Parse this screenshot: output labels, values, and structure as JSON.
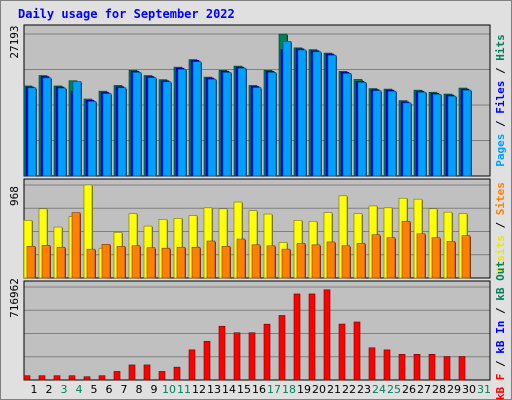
{
  "title": "Daily usage for September 2022",
  "chart_data": [
    {
      "panel": "top",
      "type": "bar",
      "ymax_label": "27193",
      "ymax": 27193,
      "legend": [
        {
          "text": "Pages",
          "color": "#00a0ff"
        },
        {
          "text": " / ",
          "color": "#000000"
        },
        {
          "text": "Files",
          "color": "#0000ff"
        },
        {
          "text": " / ",
          "color": "#000000"
        },
        {
          "text": "Hits",
          "color": "#00805c"
        }
      ],
      "categories": [
        "1",
        "2",
        "3",
        "4",
        "5",
        "6",
        "7",
        "8",
        "9",
        "10",
        "11",
        "12",
        "13",
        "14",
        "15",
        "16",
        "17",
        "18",
        "19",
        "20",
        "21",
        "22",
        "23",
        "24",
        "25",
        "26",
        "27",
        "28",
        "29",
        "30",
        "31"
      ],
      "series": [
        {
          "name": "Hits",
          "color": "#00805c",
          "values": [
            17250,
            19250,
            17250,
            18250,
            14750,
            16250,
            17350,
            20250,
            19250,
            18450,
            20850,
            22300,
            18950,
            20250,
            21050,
            17350,
            20250,
            27193,
            24550,
            24200,
            23550,
            20050,
            18500,
            16750,
            16650,
            14450,
            16450,
            16050,
            15700,
            16850,
            0
          ]
        },
        {
          "name": "Files",
          "color": "#0000ff",
          "values": [
            17050,
            19050,
            17050,
            16250,
            14500,
            16000,
            17100,
            20050,
            19050,
            18250,
            20650,
            22150,
            18750,
            20050,
            20850,
            17150,
            20050,
            24200,
            24350,
            24000,
            23350,
            19850,
            18150,
            16550,
            16450,
            14200,
            16250,
            15850,
            15500,
            16650,
            0
          ]
        },
        {
          "name": "Pages",
          "color": "#00a0ff",
          "values": [
            16900,
            18800,
            16850,
            18100,
            14300,
            15800,
            16900,
            19850,
            18850,
            18050,
            20450,
            21900,
            18550,
            19850,
            20650,
            16950,
            19850,
            25800,
            24150,
            23800,
            23150,
            19650,
            17950,
            16350,
            16250,
            14000,
            16050,
            15650,
            15300,
            16450,
            0
          ]
        }
      ]
    },
    {
      "panel": "middle",
      "type": "bar",
      "ymax_label": "968",
      "ymax": 968,
      "legend": [
        {
          "text": "Visits",
          "color": "#e8e800"
        },
        {
          "text": " / ",
          "color": "#000000"
        },
        {
          "text": "Sites",
          "color": "#ff8000"
        }
      ],
      "categories": [
        "1",
        "2",
        "3",
        "4",
        "5",
        "6",
        "7",
        "8",
        "9",
        "10",
        "11",
        "12",
        "13",
        "14",
        "15",
        "16",
        "17",
        "18",
        "19",
        "20",
        "21",
        "22",
        "23",
        "24",
        "25",
        "26",
        "27",
        "28",
        "29",
        "30",
        "31"
      ],
      "series": [
        {
          "name": "Visits",
          "color": "#ffff00",
          "values": [
            600,
            720,
            530,
            640,
            968,
            310,
            475,
            670,
            540,
            610,
            620,
            650,
            730,
            720,
            790,
            700,
            665,
            370,
            600,
            590,
            680,
            855,
            670,
            750,
            730,
            830,
            820,
            720,
            685,
            670,
            0
          ]
        },
        {
          "name": "Sites",
          "color": "#ff8000",
          "values": [
            330,
            340,
            320,
            680,
            300,
            350,
            330,
            335,
            315,
            310,
            320,
            320,
            385,
            330,
            405,
            345,
            335,
            300,
            360,
            345,
            375,
            335,
            360,
            450,
            420,
            590,
            460,
            420,
            380,
            440,
            0
          ]
        }
      ]
    },
    {
      "panel": "bottom",
      "type": "bar",
      "ymax_label": "716962",
      "ymax": 716962,
      "legend": [
        {
          "text": "kB F",
          "color": "#ff0000"
        },
        {
          "text": " / ",
          "color": "#000000"
        },
        {
          "text": "kB In",
          "color": "#0000ff"
        },
        {
          "text": " / ",
          "color": "#000000"
        },
        {
          "text": "kB Out",
          "color": "#00805c"
        }
      ],
      "categories": [
        "1",
        "2",
        "3",
        "4",
        "5",
        "6",
        "7",
        "8",
        "9",
        "10",
        "11",
        "12",
        "13",
        "14",
        "15",
        "16",
        "17",
        "18",
        "19",
        "20",
        "21",
        "22",
        "23",
        "24",
        "25",
        "26",
        "27",
        "28",
        "29",
        "30",
        "31"
      ],
      "series": [
        {
          "name": "kB F",
          "color": "#ff0000",
          "values": [
            33000,
            33000,
            33000,
            33000,
            25000,
            33000,
            66000,
            116000,
            116000,
            66000,
            99000,
            232000,
            298000,
            414000,
            364000,
            364000,
            430000,
            497000,
            663000,
            663000,
            695000,
            431000,
            447000,
            248000,
            232000,
            198000,
            198000,
            198000,
            181000,
            181000,
            0
          ]
        }
      ]
    }
  ],
  "day_label_colors": [
    "#000000",
    "#000000",
    "#00805c",
    "#00805c",
    "#000000",
    "#000000",
    "#000000",
    "#000000",
    "#000000",
    "#00805c",
    "#00805c",
    "#000000",
    "#000000",
    "#000000",
    "#000000",
    "#000000",
    "#00805c",
    "#00805c",
    "#000000",
    "#000000",
    "#000000",
    "#000000",
    "#000000",
    "#00805c",
    "#00805c",
    "#000000",
    "#000000",
    "#000000",
    "#000000",
    "#000000",
    "#00805c"
  ]
}
